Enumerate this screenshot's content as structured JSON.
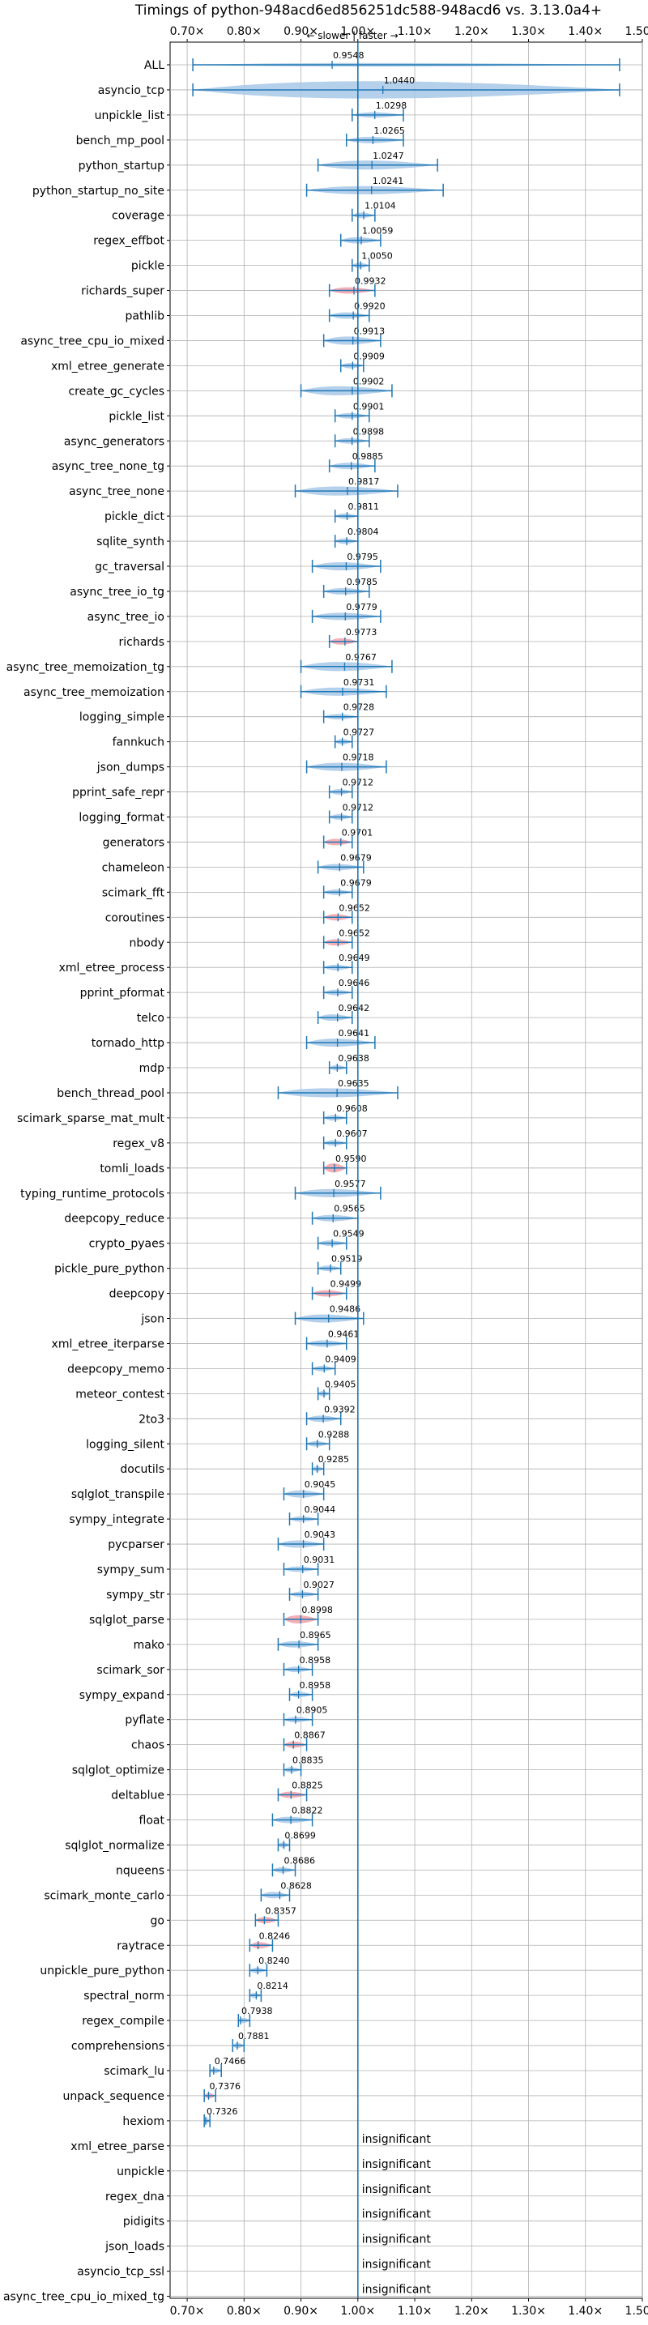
{
  "chart_data": {
    "type": "violin",
    "title": "Timings of python-948acd6ed856251dc588-948acd6 vs. 3.13.0a4+",
    "subtitle": "← slower | faster →",
    "xlim": [
      0.67,
      1.5
    ],
    "x_ticks": [
      0.7,
      0.8,
      0.9,
      1.0,
      1.1,
      1.2,
      1.3,
      1.4,
      1.5
    ],
    "x_tick_labels": [
      "0.70×",
      "0.80×",
      "0.90×",
      "1.00×",
      "1.10×",
      "1.20×",
      "1.30×",
      "1.40×",
      "1.50×"
    ],
    "reference_line": 1.0,
    "grid": true,
    "colors": {
      "violin": "#a8c8e8",
      "violin_regression": "#f4a0a8",
      "whisker": "#1f77b4",
      "reference": "#1f77b4",
      "grid": "#b0b0b0"
    },
    "benchmarks": [
      {
        "name": "ALL",
        "value": 0.9548,
        "label": "0.9548",
        "min": 0.71,
        "max": 1.46,
        "width": 0.12,
        "color": "blue"
      },
      {
        "name": "asyncio_tcp",
        "value": 1.044,
        "label": "1.0440",
        "min": 0.71,
        "max": 1.46,
        "width": 0.95,
        "color": "blue"
      },
      {
        "name": "unpickle_list",
        "value": 1.0298,
        "label": "1.0298",
        "min": 0.99,
        "max": 1.08,
        "width": 0.3,
        "color": "blue"
      },
      {
        "name": "bench_mp_pool",
        "value": 1.0265,
        "label": "1.0265",
        "min": 0.98,
        "max": 1.08,
        "width": 0.35,
        "color": "blue"
      },
      {
        "name": "python_startup",
        "value": 1.0247,
        "label": "1.0247",
        "min": 0.93,
        "max": 1.14,
        "width": 0.5,
        "color": "blue"
      },
      {
        "name": "python_startup_no_site",
        "value": 1.0241,
        "label": "1.0241",
        "min": 0.91,
        "max": 1.15,
        "width": 0.45,
        "color": "blue"
      },
      {
        "name": "coverage",
        "value": 1.0104,
        "label": "1.0104",
        "min": 0.99,
        "max": 1.03,
        "width": 0.3,
        "color": "blue"
      },
      {
        "name": "regex_effbot",
        "value": 1.0059,
        "label": "1.0059",
        "min": 0.97,
        "max": 1.04,
        "width": 0.35,
        "color": "blue"
      },
      {
        "name": "pickle",
        "value": 1.005,
        "label": "1.0050",
        "min": 0.99,
        "max": 1.02,
        "width": 0.3,
        "color": "blue"
      },
      {
        "name": "richards_super",
        "value": 0.9932,
        "label": "0.9932",
        "min": 0.95,
        "max": 1.03,
        "width": 0.35,
        "color": "red"
      },
      {
        "name": "pathlib",
        "value": 0.992,
        "label": "0.9920",
        "min": 0.95,
        "max": 1.02,
        "width": 0.35,
        "color": "blue"
      },
      {
        "name": "async_tree_cpu_io_mixed",
        "value": 0.9913,
        "label": "0.9913",
        "min": 0.94,
        "max": 1.04,
        "width": 0.45,
        "color": "blue"
      },
      {
        "name": "xml_etree_generate",
        "value": 0.9909,
        "label": "0.9909",
        "min": 0.97,
        "max": 1.01,
        "width": 0.3,
        "color": "blue"
      },
      {
        "name": "create_gc_cycles",
        "value": 0.9902,
        "label": "0.9902",
        "min": 0.9,
        "max": 1.06,
        "width": 0.5,
        "color": "blue"
      },
      {
        "name": "pickle_list",
        "value": 0.9901,
        "label": "0.9901",
        "min": 0.96,
        "max": 1.02,
        "width": 0.3,
        "color": "blue"
      },
      {
        "name": "async_generators",
        "value": 0.9898,
        "label": "0.9898",
        "min": 0.96,
        "max": 1.02,
        "width": 0.3,
        "color": "blue"
      },
      {
        "name": "async_tree_none_tg",
        "value": 0.9885,
        "label": "0.9885",
        "min": 0.95,
        "max": 1.03,
        "width": 0.35,
        "color": "blue"
      },
      {
        "name": "async_tree_none",
        "value": 0.9817,
        "label": "0.9817",
        "min": 0.89,
        "max": 1.07,
        "width": 0.5,
        "color": "blue"
      },
      {
        "name": "pickle_dict",
        "value": 0.9811,
        "label": "0.9811",
        "min": 0.96,
        "max": 1.0,
        "width": 0.3,
        "color": "blue"
      },
      {
        "name": "sqlite_synth",
        "value": 0.9804,
        "label": "0.9804",
        "min": 0.96,
        "max": 1.0,
        "width": 0.3,
        "color": "blue"
      },
      {
        "name": "gc_traversal",
        "value": 0.9795,
        "label": "0.9795",
        "min": 0.92,
        "max": 1.04,
        "width": 0.45,
        "color": "blue"
      },
      {
        "name": "async_tree_io_tg",
        "value": 0.9785,
        "label": "0.9785",
        "min": 0.94,
        "max": 1.02,
        "width": 0.35,
        "color": "blue"
      },
      {
        "name": "async_tree_io",
        "value": 0.9779,
        "label": "0.9779",
        "min": 0.92,
        "max": 1.04,
        "width": 0.4,
        "color": "blue"
      },
      {
        "name": "richards",
        "value": 0.9773,
        "label": "0.9773",
        "min": 0.95,
        "max": 1.0,
        "width": 0.35,
        "color": "red"
      },
      {
        "name": "async_tree_memoization_tg",
        "value": 0.9767,
        "label": "0.9767",
        "min": 0.9,
        "max": 1.06,
        "width": 0.5,
        "color": "blue"
      },
      {
        "name": "async_tree_memoization",
        "value": 0.9731,
        "label": "0.9731",
        "min": 0.9,
        "max": 1.05,
        "width": 0.45,
        "color": "blue"
      },
      {
        "name": "logging_simple",
        "value": 0.9728,
        "label": "0.9728",
        "min": 0.94,
        "max": 1.0,
        "width": 0.3,
        "color": "blue"
      },
      {
        "name": "fannkuch",
        "value": 0.9727,
        "label": "0.9727",
        "min": 0.96,
        "max": 0.99,
        "width": 0.3,
        "color": "blue"
      },
      {
        "name": "json_dumps",
        "value": 0.9718,
        "label": "0.9718",
        "min": 0.91,
        "max": 1.05,
        "width": 0.45,
        "color": "blue"
      },
      {
        "name": "pprint_safe_repr",
        "value": 0.9712,
        "label": "0.9712",
        "min": 0.95,
        "max": 0.99,
        "width": 0.3,
        "color": "blue"
      },
      {
        "name": "logging_format",
        "value": 0.9712,
        "label": "0.9712",
        "min": 0.95,
        "max": 0.99,
        "width": 0.3,
        "color": "blue"
      },
      {
        "name": "generators",
        "value": 0.9701,
        "label": "0.9701",
        "min": 0.94,
        "max": 0.99,
        "width": 0.35,
        "color": "red"
      },
      {
        "name": "chameleon",
        "value": 0.9679,
        "label": "0.9679",
        "min": 0.93,
        "max": 1.01,
        "width": 0.35,
        "color": "blue"
      },
      {
        "name": "scimark_fft",
        "value": 0.9679,
        "label": "0.9679",
        "min": 0.94,
        "max": 0.99,
        "width": 0.3,
        "color": "blue"
      },
      {
        "name": "coroutines",
        "value": 0.9652,
        "label": "0.9652",
        "min": 0.94,
        "max": 0.99,
        "width": 0.35,
        "color": "red"
      },
      {
        "name": "nbody",
        "value": 0.9652,
        "label": "0.9652",
        "min": 0.94,
        "max": 0.99,
        "width": 0.35,
        "color": "red"
      },
      {
        "name": "xml_etree_process",
        "value": 0.9649,
        "label": "0.9649",
        "min": 0.94,
        "max": 0.99,
        "width": 0.3,
        "color": "blue"
      },
      {
        "name": "pprint_pformat",
        "value": 0.9646,
        "label": "0.9646",
        "min": 0.94,
        "max": 0.99,
        "width": 0.3,
        "color": "blue"
      },
      {
        "name": "telco",
        "value": 0.9642,
        "label": "0.9642",
        "min": 0.93,
        "max": 0.99,
        "width": 0.35,
        "color": "blue"
      },
      {
        "name": "tornado_http",
        "value": 0.9641,
        "label": "0.9641",
        "min": 0.91,
        "max": 1.03,
        "width": 0.45,
        "color": "blue"
      },
      {
        "name": "mdp",
        "value": 0.9638,
        "label": "0.9638",
        "min": 0.95,
        "max": 0.98,
        "width": 0.3,
        "color": "blue"
      },
      {
        "name": "bench_thread_pool",
        "value": 0.9635,
        "label": "0.9635",
        "min": 0.86,
        "max": 1.07,
        "width": 0.5,
        "color": "blue"
      },
      {
        "name": "scimark_sparse_mat_mult",
        "value": 0.9608,
        "label": "0.9608",
        "min": 0.94,
        "max": 0.98,
        "width": 0.3,
        "color": "blue"
      },
      {
        "name": "regex_v8",
        "value": 0.9607,
        "label": "0.9607",
        "min": 0.94,
        "max": 0.98,
        "width": 0.3,
        "color": "blue"
      },
      {
        "name": "tomli_loads",
        "value": 0.959,
        "label": "0.9590",
        "min": 0.94,
        "max": 0.98,
        "width": 0.5,
        "color": "red"
      },
      {
        "name": "typing_runtime_protocols",
        "value": 0.9577,
        "label": "0.9577",
        "min": 0.89,
        "max": 1.04,
        "width": 0.45,
        "color": "blue"
      },
      {
        "name": "deepcopy_reduce",
        "value": 0.9565,
        "label": "0.9565",
        "min": 0.92,
        "max": 1.0,
        "width": 0.35,
        "color": "blue"
      },
      {
        "name": "crypto_pyaes",
        "value": 0.9549,
        "label": "0.9549",
        "min": 0.93,
        "max": 0.98,
        "width": 0.3,
        "color": "blue"
      },
      {
        "name": "pickle_pure_python",
        "value": 0.9519,
        "label": "0.9519",
        "min": 0.93,
        "max": 0.97,
        "width": 0.3,
        "color": "blue"
      },
      {
        "name": "deepcopy",
        "value": 0.9499,
        "label": "0.9499",
        "min": 0.92,
        "max": 0.98,
        "width": 0.35,
        "color": "red"
      },
      {
        "name": "json",
        "value": 0.9486,
        "label": "0.9486",
        "min": 0.89,
        "max": 1.01,
        "width": 0.45,
        "color": "blue"
      },
      {
        "name": "xml_etree_iterparse",
        "value": 0.9461,
        "label": "0.9461",
        "min": 0.91,
        "max": 0.98,
        "width": 0.35,
        "color": "blue"
      },
      {
        "name": "deepcopy_memo",
        "value": 0.9409,
        "label": "0.9409",
        "min": 0.92,
        "max": 0.96,
        "width": 0.3,
        "color": "blue"
      },
      {
        "name": "meteor_contest",
        "value": 0.9405,
        "label": "0.9405",
        "min": 0.93,
        "max": 0.95,
        "width": 0.3,
        "color": "blue"
      },
      {
        "name": "2to3",
        "value": 0.9392,
        "label": "0.9392",
        "min": 0.91,
        "max": 0.97,
        "width": 0.35,
        "color": "blue"
      },
      {
        "name": "logging_silent",
        "value": 0.9288,
        "label": "0.9288",
        "min": 0.91,
        "max": 0.95,
        "width": 0.3,
        "color": "blue"
      },
      {
        "name": "docutils",
        "value": 0.9285,
        "label": "0.9285",
        "min": 0.92,
        "max": 0.94,
        "width": 0.3,
        "color": "blue"
      },
      {
        "name": "sqlglot_transpile",
        "value": 0.9045,
        "label": "0.9045",
        "min": 0.87,
        "max": 0.94,
        "width": 0.4,
        "color": "blue"
      },
      {
        "name": "sympy_integrate",
        "value": 0.9044,
        "label": "0.9044",
        "min": 0.88,
        "max": 0.93,
        "width": 0.3,
        "color": "blue"
      },
      {
        "name": "pycparser",
        "value": 0.9043,
        "label": "0.9043",
        "min": 0.86,
        "max": 0.94,
        "width": 0.4,
        "color": "blue"
      },
      {
        "name": "sympy_sum",
        "value": 0.9031,
        "label": "0.9031",
        "min": 0.87,
        "max": 0.93,
        "width": 0.3,
        "color": "blue"
      },
      {
        "name": "sympy_str",
        "value": 0.9027,
        "label": "0.9027",
        "min": 0.88,
        "max": 0.93,
        "width": 0.3,
        "color": "blue"
      },
      {
        "name": "sqlglot_parse",
        "value": 0.8998,
        "label": "0.8998",
        "min": 0.87,
        "max": 0.93,
        "width": 0.45,
        "color": "red"
      },
      {
        "name": "mako",
        "value": 0.8965,
        "label": "0.8965",
        "min": 0.86,
        "max": 0.93,
        "width": 0.35,
        "color": "blue"
      },
      {
        "name": "scimark_sor",
        "value": 0.8958,
        "label": "0.8958",
        "min": 0.87,
        "max": 0.92,
        "width": 0.3,
        "color": "blue"
      },
      {
        "name": "sympy_expand",
        "value": 0.8958,
        "label": "0.8958",
        "min": 0.88,
        "max": 0.92,
        "width": 0.3,
        "color": "blue"
      },
      {
        "name": "pyflate",
        "value": 0.8905,
        "label": "0.8905",
        "min": 0.87,
        "max": 0.92,
        "width": 0.3,
        "color": "blue"
      },
      {
        "name": "chaos",
        "value": 0.8867,
        "label": "0.8867",
        "min": 0.87,
        "max": 0.91,
        "width": 0.35,
        "color": "red"
      },
      {
        "name": "sqlglot_optimize",
        "value": 0.8835,
        "label": "0.8835",
        "min": 0.87,
        "max": 0.9,
        "width": 0.3,
        "color": "blue"
      },
      {
        "name": "deltablue",
        "value": 0.8825,
        "label": "0.8825",
        "min": 0.86,
        "max": 0.91,
        "width": 0.35,
        "color": "red"
      },
      {
        "name": "float",
        "value": 0.8822,
        "label": "0.8822",
        "min": 0.85,
        "max": 0.92,
        "width": 0.35,
        "color": "blue"
      },
      {
        "name": "sqlglot_normalize",
        "value": 0.8699,
        "label": "0.8699",
        "min": 0.86,
        "max": 0.88,
        "width": 0.3,
        "color": "blue"
      },
      {
        "name": "nqueens",
        "value": 0.8686,
        "label": "0.8686",
        "min": 0.85,
        "max": 0.89,
        "width": 0.3,
        "color": "blue"
      },
      {
        "name": "scimark_monte_carlo",
        "value": 0.8628,
        "label": "0.8628",
        "min": 0.83,
        "max": 0.88,
        "width": 0.35,
        "color": "blue"
      },
      {
        "name": "go",
        "value": 0.8357,
        "label": "0.8357",
        "min": 0.82,
        "max": 0.86,
        "width": 0.35,
        "color": "red"
      },
      {
        "name": "raytrace",
        "value": 0.8246,
        "label": "0.8246",
        "min": 0.81,
        "max": 0.85,
        "width": 0.35,
        "color": "red"
      },
      {
        "name": "unpickle_pure_python",
        "value": 0.824,
        "label": "0.8240",
        "min": 0.81,
        "max": 0.84,
        "width": 0.3,
        "color": "blue"
      },
      {
        "name": "spectral_norm",
        "value": 0.8214,
        "label": "0.8214",
        "min": 0.81,
        "max": 0.83,
        "width": 0.3,
        "color": "blue"
      },
      {
        "name": "regex_compile",
        "value": 0.7938,
        "label": "0.7938",
        "min": 0.79,
        "max": 0.81,
        "width": 0.3,
        "color": "blue"
      },
      {
        "name": "comprehensions",
        "value": 0.7881,
        "label": "0.7881",
        "min": 0.78,
        "max": 0.8,
        "width": 0.3,
        "color": "blue"
      },
      {
        "name": "scimark_lu",
        "value": 0.7466,
        "label": "0.7466",
        "min": 0.74,
        "max": 0.76,
        "width": 0.3,
        "color": "blue"
      },
      {
        "name": "unpack_sequence",
        "value": 0.7376,
        "label": "0.7376",
        "min": 0.73,
        "max": 0.75,
        "width": 0.3,
        "color": "red"
      },
      {
        "name": "hexiom",
        "value": 0.7326,
        "label": "0.7326",
        "min": 0.73,
        "max": 0.74,
        "width": 0.3,
        "color": "blue"
      },
      {
        "name": "xml_etree_parse",
        "insignificant": true,
        "label": "insignificant"
      },
      {
        "name": "unpickle",
        "insignificant": true,
        "label": "insignificant"
      },
      {
        "name": "regex_dna",
        "insignificant": true,
        "label": "insignificant"
      },
      {
        "name": "pidigits",
        "insignificant": true,
        "label": "insignificant"
      },
      {
        "name": "json_loads",
        "insignificant": true,
        "label": "insignificant"
      },
      {
        "name": "asyncio_tcp_ssl",
        "insignificant": true,
        "label": "insignificant"
      },
      {
        "name": "async_tree_cpu_io_mixed_tg",
        "insignificant": true,
        "label": "insignificant"
      }
    ]
  }
}
